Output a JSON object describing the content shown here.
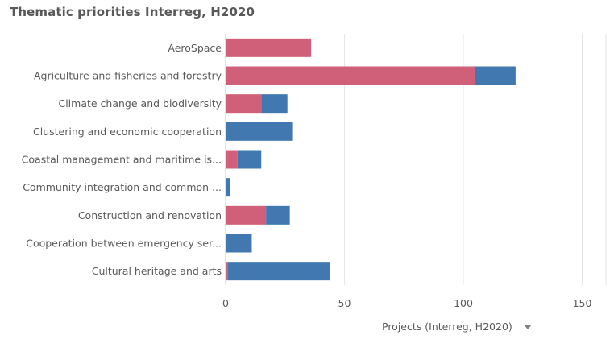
{
  "chart_data": {
    "type": "bar",
    "orientation": "horizontal",
    "stacked": true,
    "title": "Thematic priorities Interreg, H2020",
    "xlabel": "Projects (Interreg, H2020)",
    "ylabel": "",
    "xlim": [
      0,
      160
    ],
    "x_ticks": [
      "0",
      "50",
      "100",
      "150"
    ],
    "x_tick_values": [
      0,
      50,
      100,
      150
    ],
    "grid": true,
    "categories": [
      "AeroSpace",
      "Agriculture and fisheries and forestry",
      "Climate change and biodiversity",
      "Clustering and economic cooperation",
      "Coastal management and maritime is...",
      "Community integration and common ...",
      "Construction and renovation",
      "Cooperation between emergency ser...",
      "Cultural heritage and arts"
    ],
    "series": [
      {
        "color": "#d0607a",
        "values": [
          36,
          105,
          15,
          0,
          5,
          0,
          17,
          0,
          1
        ]
      },
      {
        "color": "#4178b0",
        "values": [
          0,
          17,
          11,
          28,
          10,
          2,
          10,
          11,
          43
        ]
      }
    ]
  }
}
